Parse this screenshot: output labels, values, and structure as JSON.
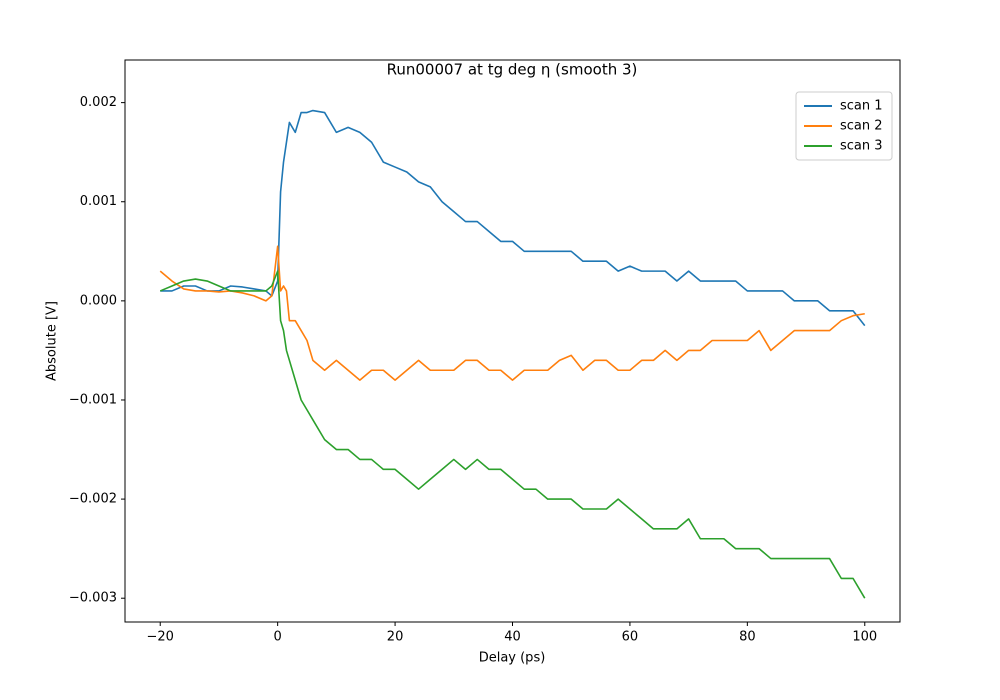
{
  "chart_data": {
    "type": "line",
    "title": "Run00007 at tg deg η (smooth 3)",
    "x_label": "Delay (ps)",
    "y_label": "Absolute [V]",
    "x": [
      -20,
      -18,
      -16,
      -14,
      -12,
      -10,
      -8,
      -6,
      -4,
      -2,
      -1,
      0,
      0.5,
      1,
      1.5,
      2,
      3,
      4,
      5,
      6,
      8,
      10,
      12,
      14,
      16,
      18,
      20,
      22,
      24,
      26,
      28,
      30,
      32,
      34,
      36,
      38,
      40,
      42,
      44,
      46,
      48,
      50,
      52,
      54,
      56,
      58,
      60,
      62,
      64,
      66,
      68,
      70,
      72,
      74,
      76,
      78,
      80,
      82,
      84,
      86,
      88,
      90,
      92,
      94,
      96,
      98,
      100
    ],
    "series": [
      {
        "name": "scan 1",
        "color": "#1f77b4",
        "values": [
          0.0001,
          0.0001,
          0.00015,
          0.00015,
          0.0001,
          0.0001,
          0.00015,
          0.00014,
          0.00012,
          0.0001,
          5e-05,
          0.0002,
          0.0011,
          0.0014,
          0.0016,
          0.0018,
          0.0017,
          0.0019,
          0.0019,
          0.00192,
          0.0019,
          0.0017,
          0.00175,
          0.0017,
          0.0016,
          0.0014,
          0.00135,
          0.0013,
          0.0012,
          0.00115,
          0.001,
          0.0009,
          0.0008,
          0.0008,
          0.0007,
          0.0006,
          0.0006,
          0.0005,
          0.0005,
          0.0005,
          0.0005,
          0.0005,
          0.0004,
          0.0004,
          0.0004,
          0.0003,
          0.00035,
          0.0003,
          0.0003,
          0.0003,
          0.0002,
          0.0003,
          0.0002,
          0.0002,
          0.0002,
          0.0002,
          0.0001,
          0.0001,
          0.0001,
          0.0001,
          0.0,
          0.0,
          0.0,
          -0.0001,
          -0.0001,
          -0.0001,
          -0.00025
        ]
      },
      {
        "name": "scan 2",
        "color": "#ff7f0e",
        "values": [
          0.0003,
          0.0002,
          0.00012,
          0.0001,
          0.0001,
          9e-05,
          0.0001,
          8e-05,
          5e-05,
          0.0,
          5e-05,
          0.00055,
          0.0001,
          0.00015,
          0.0001,
          -0.0002,
          -0.0002,
          -0.0003,
          -0.0004,
          -0.0006,
          -0.0007,
          -0.0006,
          -0.0007,
          -0.0008,
          -0.0007,
          -0.0007,
          -0.0008,
          -0.0007,
          -0.0006,
          -0.0007,
          -0.0007,
          -0.0007,
          -0.0006,
          -0.0006,
          -0.0007,
          -0.0007,
          -0.0008,
          -0.0007,
          -0.0007,
          -0.0007,
          -0.0006,
          -0.00055,
          -0.0007,
          -0.0006,
          -0.0006,
          -0.0007,
          -0.0007,
          -0.0006,
          -0.0006,
          -0.0005,
          -0.0006,
          -0.0005,
          -0.0005,
          -0.0004,
          -0.0004,
          -0.0004,
          -0.0004,
          -0.0003,
          -0.0005,
          -0.0004,
          -0.0003,
          -0.0003,
          -0.0003,
          -0.0003,
          -0.0002,
          -0.00015,
          -0.00013
        ]
      },
      {
        "name": "scan 3",
        "color": "#2ca02c",
        "values": [
          0.0001,
          0.00015,
          0.0002,
          0.00022,
          0.0002,
          0.00015,
          0.0001,
          0.0001,
          0.0001,
          0.0001,
          0.00015,
          0.0003,
          -0.0002,
          -0.0003,
          -0.0005,
          -0.0006,
          -0.0008,
          -0.001,
          -0.0011,
          -0.0012,
          -0.0014,
          -0.0015,
          -0.0015,
          -0.0016,
          -0.0016,
          -0.0017,
          -0.0017,
          -0.0018,
          -0.0019,
          -0.0018,
          -0.0017,
          -0.0016,
          -0.0017,
          -0.0016,
          -0.0017,
          -0.0017,
          -0.0018,
          -0.0019,
          -0.0019,
          -0.002,
          -0.002,
          -0.002,
          -0.0021,
          -0.0021,
          -0.0021,
          -0.002,
          -0.0021,
          -0.0022,
          -0.0023,
          -0.0023,
          -0.0023,
          -0.0022,
          -0.0024,
          -0.0024,
          -0.0024,
          -0.0025,
          -0.0025,
          -0.0025,
          -0.0026,
          -0.0026,
          -0.0026,
          -0.0026,
          -0.0026,
          -0.0026,
          -0.0028,
          -0.0028,
          -0.003
        ]
      }
    ],
    "xlim": [
      -26,
      106
    ],
    "ylim": [
      -0.00324,
      0.00243
    ],
    "xticks": [
      {
        "value": -20,
        "label": "−20"
      },
      0,
      20,
      40,
      60,
      80,
      100
    ],
    "yticks": [
      {
        "value": 0.002,
        "label": "0.002"
      },
      {
        "value": 0.001,
        "label": "0.001"
      },
      {
        "value": 0,
        "label": "0.000"
      },
      {
        "value": -0.001,
        "label": "−0.001"
      },
      {
        "value": -0.002,
        "label": "−0.002"
      },
      {
        "value": -0.003,
        "label": "−0.003"
      }
    ],
    "grid": false,
    "legend": "upper right"
  }
}
